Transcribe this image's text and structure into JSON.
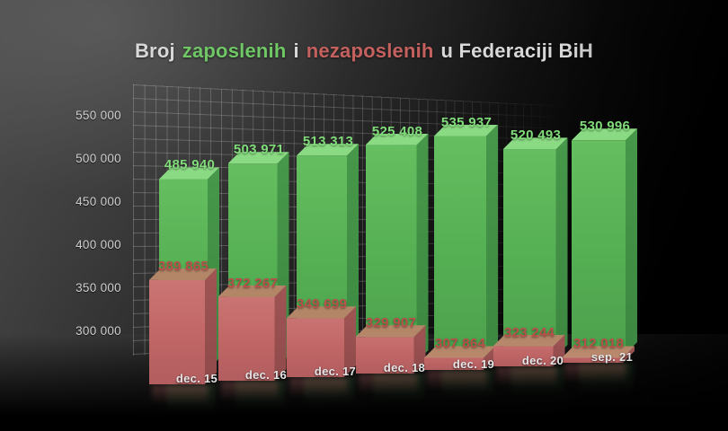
{
  "title": {
    "part1": "Broj",
    "employed_word": "zaposlenih",
    "part2": "i",
    "unemployed_word": "nezaposlenih",
    "part3": "u Federaciji BiH"
  },
  "colors": {
    "title_text": "#d8d8d8",
    "employed_green": "#6fc765",
    "unemployed_red": "#c4615e",
    "employed_bar_front": "#58b356",
    "employed_bar_top": "#84d67e",
    "unemployed_bar_front": "#c26767",
    "unemployed_bar_top": "#bd8f72",
    "employed_label": "#80dd7a",
    "unemployed_label": "#bb4f4b",
    "axis_text": "#cfcfcf",
    "date_text": "#e6e6e6"
  },
  "chart_data": {
    "type": "bar",
    "title": "Broj zaposlenih i nezaposlenih u Federaciji BiH",
    "xlabel": "",
    "ylabel": "",
    "legend_position": "none",
    "grid": true,
    "style": "3d-perspective",
    "categories": [
      "dec. 15",
      "dec. 16",
      "dec. 17",
      "dec. 18",
      "dec. 19",
      "dec. 20",
      "sep. 21"
    ],
    "series": [
      {
        "name": "zaposlenih",
        "color": "#58b356",
        "label_color": "#80dd7a",
        "values": [
          485940,
          503971,
          513313,
          525408,
          535937,
          520493,
          530996
        ],
        "display": [
          "485 940",
          "503 971",
          "513 313",
          "525 408",
          "535 937",
          "520 493",
          "530 996"
        ]
      },
      {
        "name": "nezaposlenih",
        "color": "#c26767",
        "label_color": "#bb4f4b",
        "values": [
          389865,
          372267,
          349699,
          329907,
          307864,
          323244,
          312018
        ],
        "display": [
          "389 865",
          "372 267",
          "349 699",
          "329 907",
          "307 864",
          "323 244",
          "312 018"
        ]
      }
    ],
    "y_axis": {
      "ticks": [
        "550 000",
        "500 000",
        "450 000",
        "400 000",
        "350 000",
        "300 000"
      ],
      "tick_values": [
        550000,
        500000,
        450000,
        400000,
        350000,
        300000
      ],
      "min": 300000,
      "max": 550000
    }
  }
}
